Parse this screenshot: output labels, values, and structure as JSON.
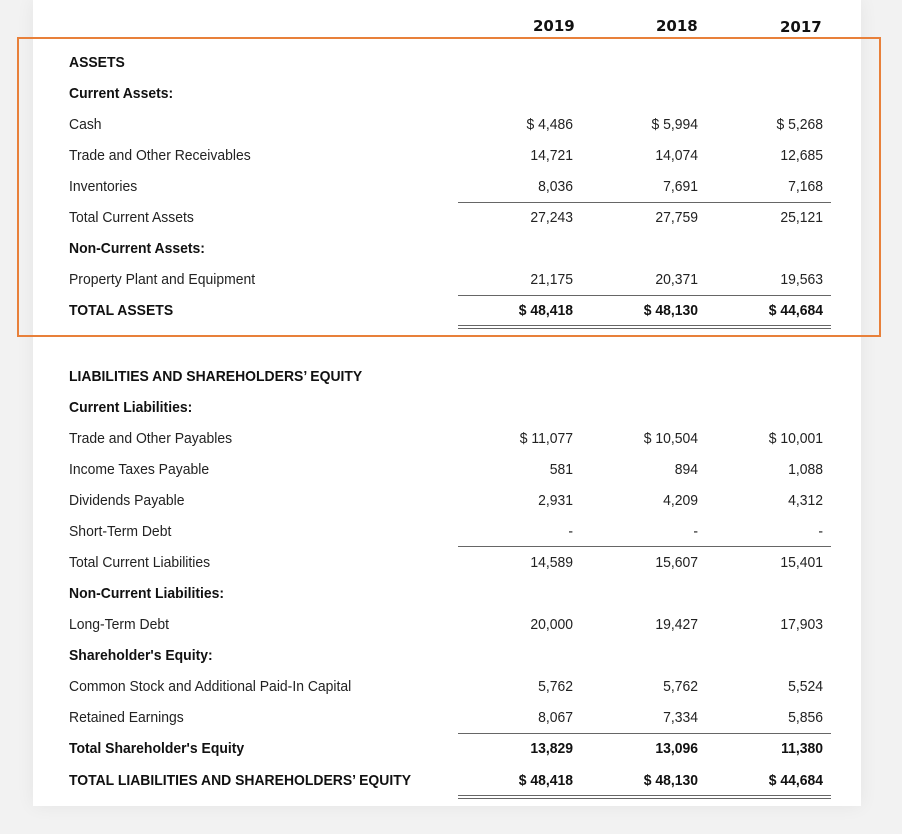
{
  "years": [
    "2019",
    "2018",
    "2017"
  ],
  "assets": {
    "heading": "ASSETS",
    "current_heading": "Current Assets:",
    "cash": {
      "label": "Cash",
      "values": [
        "$ 4,486",
        "$ 5,994",
        "$ 5,268"
      ]
    },
    "receivables": {
      "label": "Trade and Other Receivables",
      "values": [
        "14,721",
        "14,074",
        "12,685"
      ]
    },
    "inventories": {
      "label": "Inventories",
      "values": [
        "8,036",
        "7,691",
        "7,168"
      ]
    },
    "total_current": {
      "label": "Total Current Assets",
      "values": [
        "27,243",
        "27,759",
        "25,121"
      ]
    },
    "noncurrent_heading": "Non-Current Assets:",
    "ppe": {
      "label": "Property Plant and Equipment",
      "values": [
        "21,175",
        "20,371",
        "19,563"
      ]
    },
    "total": {
      "label": "TOTAL ASSETS",
      "values": [
        "$ 48,418",
        "$ 48,130",
        "$ 44,684"
      ]
    }
  },
  "liabilities": {
    "heading": "LIABILITIES AND SHAREHOLDERS’ EQUITY",
    "current_heading": "Current Liabilities:",
    "payables": {
      "label": "Trade and Other Payables",
      "values": [
        "$ 11,077",
        "$ 10,504",
        "$ 10,001"
      ]
    },
    "income_tax": {
      "label": "Income Taxes Payable",
      "values": [
        "581",
        "894",
        "1,088"
      ]
    },
    "dividends": {
      "label": "Dividends Payable",
      "values": [
        "2,931",
        "4,209",
        "4,312"
      ]
    },
    "short_debt": {
      "label": "Short-Term Debt",
      "values": [
        "-",
        "-",
        "-"
      ]
    },
    "total_current": {
      "label": "Total Current Liabilities",
      "values": [
        "14,589",
        "15,607",
        "15,401"
      ]
    },
    "noncurrent_heading": "Non-Current Liabilities:",
    "long_debt": {
      "label": "Long-Term Debt",
      "values": [
        "20,000",
        "19,427",
        "17,903"
      ]
    },
    "equity_heading": "Shareholder's Equity:",
    "common_stock": {
      "label": "Common Stock and Additional Paid-In Capital",
      "values": [
        "5,762",
        "5,762",
        "5,524"
      ]
    },
    "retained": {
      "label": "Retained Earnings",
      "values": [
        "8,067",
        "7,334",
        "5,856"
      ]
    },
    "total_equity": {
      "label": "Total Shareholder's Equity",
      "values": [
        "13,829",
        "13,096",
        "11,380"
      ]
    },
    "total": {
      "label": "TOTAL LIABILITIES AND SHAREHOLDERS’ EQUITY",
      "values": [
        "$ 48,418",
        "$ 48,130",
        "$ 44,684"
      ]
    }
  },
  "accent_color": "#e8803a"
}
